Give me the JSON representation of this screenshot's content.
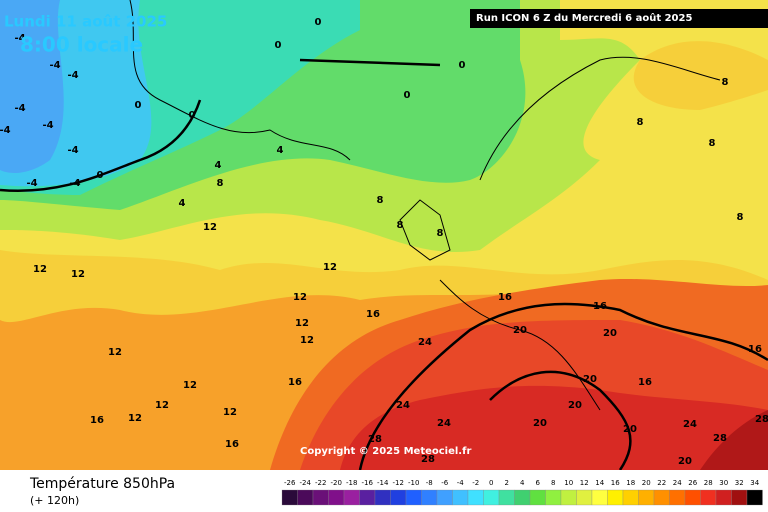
{
  "header": {
    "valid_date": "Lundi 11 août 2025",
    "local_time": "8:00 locale",
    "run": "Run ICON 6 Z du Mercredi 6 août 2025"
  },
  "footer": {
    "copyright": "Copyright © 2025 Meteociel.fr",
    "title": "Température 850hPa",
    "lead_time": "(+ 120h)"
  },
  "map": {
    "contour_labels": [
      -4,
      -4,
      -4,
      -4,
      -4,
      -4,
      -4,
      -4,
      -4,
      0,
      0,
      0,
      0,
      0,
      0,
      0,
      4,
      4,
      4,
      8,
      8,
      8,
      8,
      8,
      8,
      8,
      8,
      12,
      12,
      12,
      12,
      12,
      12,
      12,
      12,
      12,
      12,
      12,
      12,
      16,
      16,
      16,
      16,
      16,
      16,
      16,
      16,
      20,
      20,
      20,
      20,
      20,
      20,
      20,
      24,
      24,
      24,
      24,
      28,
      28,
      28,
      28
    ]
  },
  "legend": {
    "ticks": [
      -26,
      -24,
      -22,
      -20,
      -18,
      -16,
      -14,
      -12,
      -10,
      -8,
      -6,
      -4,
      -2,
      0,
      2,
      4,
      6,
      8,
      10,
      12,
      14,
      16,
      18,
      20,
      22,
      24,
      26,
      28,
      30,
      32,
      34
    ],
    "colors": [
      "#2a0a3a",
      "#4b0a5a",
      "#6a1078",
      "#80108a",
      "#9a20a0",
      "#5a20a0",
      "#3030c0",
      "#2040e0",
      "#2060ff",
      "#3080ff",
      "#40a0ff",
      "#40c0ff",
      "#40e0ff",
      "#40f0e0",
      "#40e0a0",
      "#40d070",
      "#60e040",
      "#90f040",
      "#c0f040",
      "#e0f040",
      "#ffff40",
      "#fff000",
      "#ffd000",
      "#ffb000",
      "#ff9000",
      "#ff7000",
      "#ff5000",
      "#f03020",
      "#d02020",
      "#a01010",
      "#000000"
    ]
  }
}
